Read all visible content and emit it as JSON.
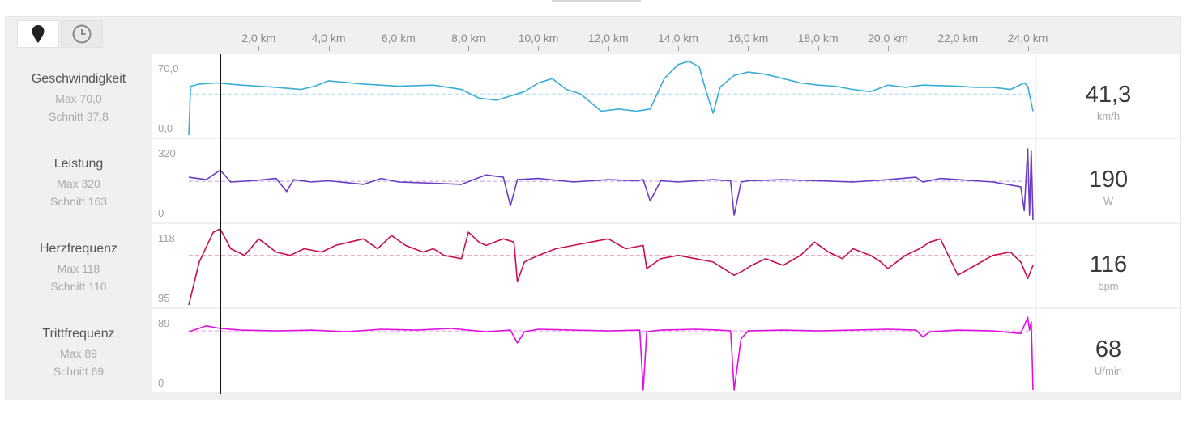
{
  "toolbar": {
    "modes": [
      {
        "name": "distance",
        "icon": "map-pin-icon",
        "active": true
      },
      {
        "name": "time",
        "icon": "clock-icon",
        "active": false
      }
    ]
  },
  "colors": {
    "speed": "#38aed6",
    "power": "#6a3bc4",
    "heart_rate": "#c8104a",
    "cadence": "#e010e0"
  },
  "metrics": [
    {
      "key": "speed",
      "name": "Geschwindigkeit",
      "max": "Max 70,0",
      "avg": "Schnitt 37,8",
      "ymax_label": "70,0",
      "ymin_label": "0,0",
      "current": "41,3",
      "unit": "km/h"
    },
    {
      "key": "power",
      "name": "Leistung",
      "max": "Max 320",
      "avg": "Schnitt 163",
      "ymax_label": "320",
      "ymin_label": "0",
      "current": "190",
      "unit": "W"
    },
    {
      "key": "heart_rate",
      "name": "Herzfrequenz",
      "max": "Max 118",
      "avg": "Schnitt 110",
      "ymax_label": "118",
      "ymin_label": "95",
      "current": "116",
      "unit": "bpm"
    },
    {
      "key": "cadence",
      "name": "Trittfrequenz",
      "max": "Max 89",
      "avg": "Schnitt 69",
      "ymax_label": "89",
      "ymin_label": "0",
      "current": "68",
      "unit": "U/min"
    }
  ],
  "chart_data": {
    "type": "line",
    "x_label_unit": "km",
    "x_ticks": [
      "2,0 km",
      "4,0 km",
      "6,0 km",
      "8,0 km",
      "10,0 km",
      "12,0 km",
      "14,0 km",
      "16,0 km",
      "18,0 km",
      "20,0 km",
      "22,0 km",
      "24,0 km"
    ],
    "x_tick_values": [
      2,
      4,
      6,
      8,
      10,
      12,
      14,
      16,
      18,
      20,
      22,
      24
    ],
    "xlim": [
      0,
      24.15
    ],
    "cursor_x": 0.9,
    "series": [
      {
        "name": "Geschwindigkeit",
        "ylim": [
          0,
          70
        ],
        "avg": 37.8,
        "x": [
          0,
          0.05,
          0.3,
          0.8,
          1.5,
          2.5,
          3.2,
          3.6,
          4.0,
          5.0,
          6.0,
          7.0,
          7.8,
          8.3,
          8.8,
          9.2,
          9.6,
          10.0,
          10.4,
          10.8,
          11.2,
          11.5,
          11.8,
          12.3,
          12.8,
          13.2,
          13.6,
          14.0,
          14.3,
          14.6,
          14.8,
          15.0,
          15.2,
          15.6,
          16.0,
          16.5,
          17.0,
          17.5,
          18.0,
          18.5,
          19.0,
          19.5,
          20.0,
          20.5,
          21.0,
          22.0,
          22.5,
          23.0,
          23.5,
          23.9,
          24.0,
          24.15
        ],
        "y": [
          0,
          45,
          47,
          48,
          46,
          44,
          42,
          45,
          50,
          47,
          45,
          46,
          42,
          34,
          32,
          36,
          40,
          48,
          52,
          42,
          38,
          30,
          22,
          24,
          22,
          24,
          52,
          65,
          68,
          63,
          40,
          20,
          44,
          55,
          58,
          56,
          52,
          48,
          46,
          45,
          42,
          40,
          46,
          44,
          46,
          45,
          44,
          44,
          42,
          48,
          45,
          22
        ]
      },
      {
        "name": "Leistung",
        "ylim": [
          0,
          320
        ],
        "avg": 163,
        "x": [
          0,
          0.5,
          0.9,
          1.2,
          1.8,
          2.5,
          2.8,
          3.0,
          3.5,
          4.0,
          5.0,
          5.5,
          6.0,
          7.0,
          7.8,
          8.5,
          9.0,
          9.2,
          9.4,
          10.0,
          11.0,
          12.0,
          12.8,
          13.0,
          13.2,
          13.5,
          14.0,
          15.0,
          15.5,
          15.6,
          15.8,
          16.0,
          17.0,
          18.0,
          19.0,
          20.0,
          20.8,
          21.0,
          21.5,
          22.0,
          23.0,
          23.8,
          23.9,
          24.0,
          24.05,
          24.1,
          24.15
        ],
        "y": [
          180,
          170,
          210,
          160,
          165,
          175,
          120,
          170,
          160,
          165,
          150,
          175,
          160,
          155,
          150,
          190,
          180,
          60,
          170,
          175,
          160,
          170,
          165,
          170,
          80,
          165,
          160,
          170,
          165,
          20,
          160,
          165,
          170,
          165,
          160,
          170,
          180,
          160,
          175,
          170,
          160,
          140,
          40,
          300,
          20,
          290,
          0
        ]
      },
      {
        "name": "Herzfrequenz",
        "ylim": [
          95,
          118
        ],
        "avg": 110,
        "x": [
          0,
          0.3,
          0.7,
          0.9,
          1.2,
          1.6,
          2.0,
          2.5,
          2.9,
          3.3,
          3.8,
          4.2,
          4.6,
          5.0,
          5.4,
          5.8,
          6.2,
          6.7,
          7.0,
          7.3,
          7.8,
          8.0,
          8.3,
          8.5,
          9.0,
          9.3,
          9.4,
          9.6,
          10.0,
          10.5,
          11.0,
          11.5,
          12.0,
          12.5,
          13.0,
          13.1,
          13.5,
          14.0,
          14.5,
          15.0,
          15.6,
          15.8,
          16.1,
          16.5,
          17.0,
          17.5,
          17.9,
          18.3,
          18.7,
          19.0,
          19.5,
          19.8,
          20.0,
          20.5,
          20.9,
          21.2,
          21.5,
          22.0,
          22.5,
          23.0,
          23.5,
          23.8,
          24.0,
          24.15
        ],
        "y": [
          95,
          108,
          117,
          118,
          112,
          110,
          115,
          111,
          110,
          112,
          111,
          113,
          114,
          115,
          112,
          116,
          113,
          111,
          112,
          110,
          109,
          117,
          114,
          113,
          115,
          114,
          102,
          108,
          110,
          112,
          113,
          114,
          115,
          112,
          113,
          106,
          109,
          110,
          109,
          108,
          104,
          105,
          107,
          109,
          107,
          110,
          114,
          111,
          109,
          112,
          110,
          108,
          106,
          110,
          112,
          114,
          115,
          104,
          107,
          110,
          111,
          108,
          103,
          107
        ]
      },
      {
        "name": "Trittfrequenz",
        "ylim": [
          0,
          89
        ],
        "avg": 69,
        "x": [
          0,
          0.5,
          0.9,
          1.5,
          2.5,
          3.5,
          4.5,
          5.5,
          6.5,
          7.5,
          8.5,
          9.2,
          9.4,
          9.6,
          10.0,
          11.0,
          12.0,
          12.9,
          13.0,
          13.1,
          13.5,
          14.5,
          15.2,
          15.5,
          15.6,
          15.8,
          16.0,
          17.0,
          18.0,
          19.0,
          20.0,
          20.8,
          21.0,
          21.2,
          22.0,
          23.0,
          23.8,
          24.0,
          24.05,
          24.1,
          24.15
        ],
        "y": [
          68,
          75,
          72,
          70,
          69,
          70,
          68,
          71,
          70,
          72,
          68,
          70,
          55,
          68,
          71,
          70,
          69,
          70,
          0,
          68,
          70,
          71,
          70,
          69,
          0,
          60,
          69,
          70,
          69,
          70,
          71,
          70,
          62,
          68,
          70,
          69,
          66,
          85,
          70,
          80,
          0
        ]
      }
    ]
  }
}
